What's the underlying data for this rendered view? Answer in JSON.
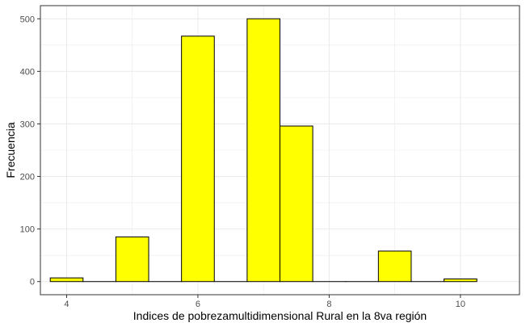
{
  "chart_data": {
    "type": "bar",
    "subtype": "histogram",
    "title": "",
    "xlabel": "Indices de pobrezamultidimensional Rural en la 8va región",
    "ylabel": "Frecuencia",
    "xlim": [
      3.6,
      10.9
    ],
    "ylim": [
      -25,
      525
    ],
    "x_ticks": [
      4,
      6,
      8,
      10
    ],
    "y_ticks": [
      0,
      100,
      200,
      300,
      400,
      500
    ],
    "grid": true,
    "legend": "none",
    "bins": [
      {
        "x0": 3.75,
        "x1": 4.25,
        "value": 7
      },
      {
        "x0": 4.25,
        "x1": 4.75,
        "value": 0
      },
      {
        "x0": 4.75,
        "x1": 5.25,
        "value": 85
      },
      {
        "x0": 5.25,
        "x1": 5.75,
        "value": 0
      },
      {
        "x0": 5.75,
        "x1": 6.25,
        "value": 467
      },
      {
        "x0": 6.25,
        "x1": 6.75,
        "value": 0
      },
      {
        "x0": 6.75,
        "x1": 7.25,
        "value": 500
      },
      {
        "x0": 7.25,
        "x1": 7.75,
        "value": 296
      },
      {
        "x0": 7.75,
        "x1": 8.25,
        "value": 0
      },
      {
        "x0": 8.25,
        "x1": 8.75,
        "value": 0
      },
      {
        "x0": 8.75,
        "x1": 9.25,
        "value": 58
      },
      {
        "x0": 9.25,
        "x1": 9.75,
        "value": 0
      },
      {
        "x0": 9.75,
        "x1": 10.25,
        "value": 5
      }
    ],
    "colors": {
      "fill": "#ffff00",
      "stroke": "#000000",
      "grid": "#ebebeb",
      "panel_border": "#333333"
    }
  }
}
